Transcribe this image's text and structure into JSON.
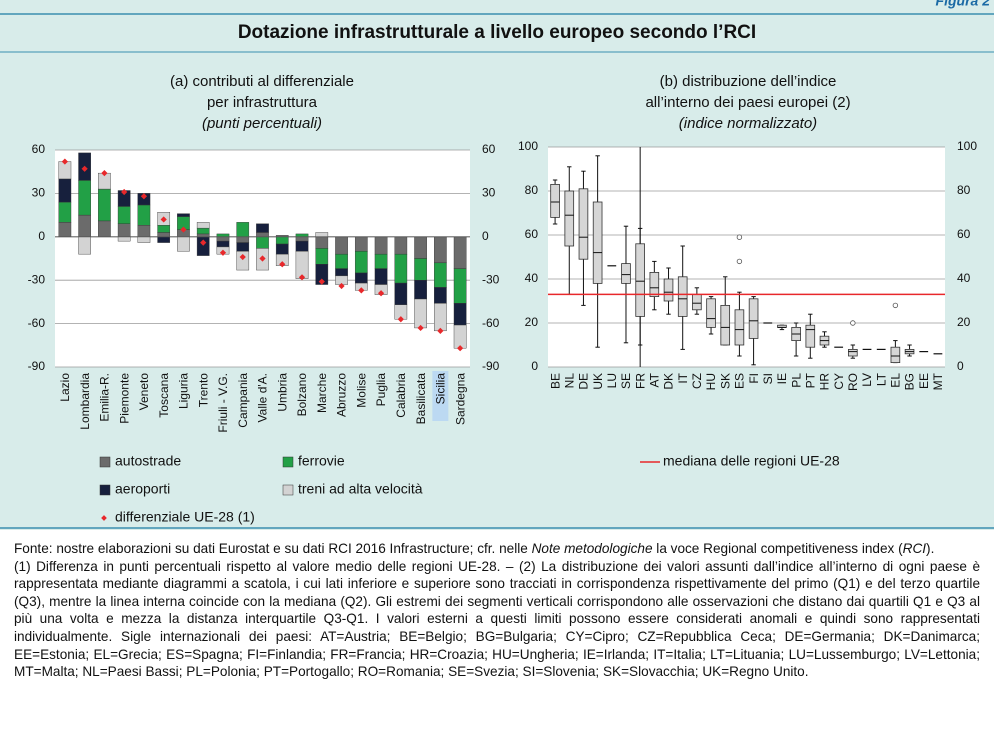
{
  "header": {
    "figure_label": "Figura 2",
    "title": "Dotazione infrastrutturale a livello europeo secondo l’RCI"
  },
  "chart_data": [
    {
      "type": "bar",
      "title_lines": [
        "(a) contributi al differenziale",
        "per infrastruttura"
      ],
      "subtitle": "(punti percentuali)",
      "categories": [
        "Lazio",
        "Lombardia",
        "Emilia-R.",
        "Piemonte",
        "Veneto",
        "Toscana",
        "Liguria",
        "Trento",
        "Friuli - V.G.",
        "Campania",
        "Valle d'A.",
        "Umbria",
        "Bolzano",
        "Marche",
        "Abruzzo",
        "Molise",
        "Puglia",
        "Calabria",
        "Basilicata",
        "Sicilia",
        "Sardegna"
      ],
      "highlight_index": 19,
      "stacked": true,
      "series": [
        {
          "name": "autostrade",
          "color": "#6b6b6b",
          "values": [
            10,
            15,
            11,
            9,
            8,
            3,
            5,
            2,
            -3,
            -4,
            3,
            1,
            -3,
            -8,
            -12,
            -10,
            -12,
            -12,
            -15,
            -18,
            -22
          ]
        },
        {
          "name": "ferrovie",
          "color": "#22a046",
          "values": [
            14,
            24,
            22,
            12,
            14,
            5,
            9,
            4,
            2,
            10,
            -8,
            -5,
            2,
            -11,
            -10,
            -15,
            -10,
            -20,
            -15,
            -17,
            -24
          ]
        },
        {
          "name": "aeroporti",
          "color": "#17203d",
          "values": [
            16,
            19,
            0,
            11,
            8,
            -4,
            2,
            -13,
            -4,
            -6,
            6,
            -7,
            -7,
            -14,
            -5,
            -7,
            -11,
            -15,
            -13,
            -11,
            -15
          ]
        },
        {
          "name": "treni ad alta velocità",
          "color": "#d3d3d3",
          "values": [
            12,
            -12,
            11,
            -3,
            -4,
            9,
            -10,
            4,
            -5,
            -13,
            -15,
            -8,
            -19,
            3,
            -6,
            -5,
            -7,
            -10,
            -20,
            -19,
            -16
          ]
        }
      ],
      "markers": {
        "name": "differenziale UE-28 (1)",
        "color": "#e8282b",
        "values": [
          52,
          47,
          44,
          31,
          28,
          12,
          5,
          -4,
          -11,
          -14,
          -15,
          -19,
          -28,
          -31,
          -34,
          -37,
          -39,
          -57,
          -63,
          -65,
          -77
        ]
      },
      "ylim": [
        -90,
        60
      ],
      "yticks": [
        60,
        30,
        0,
        -30,
        -60,
        -90
      ],
      "grid": true
    },
    {
      "type": "box",
      "title_lines": [
        "(b) distribuzione dell’indice",
        "all’interno dei paesi europei (2)"
      ],
      "subtitle": "(indice normalizzato)",
      "categories": [
        "BE",
        "NL",
        "DE",
        "UK",
        "LU",
        "SE",
        "FR",
        "AT",
        "DK",
        "IT",
        "CZ",
        "HU",
        "SK",
        "ES",
        "FI",
        "SI",
        "IE",
        "PL",
        "PT",
        "HR",
        "CY",
        "RO",
        "LV",
        "LT",
        "EL",
        "BG",
        "EE",
        "MT"
      ],
      "color": "#d6d6d6",
      "boxes": [
        {
          "stats": [
            65,
            68,
            75,
            83,
            85
          ],
          "outliers": []
        },
        {
          "stats": [
            33,
            55,
            69,
            80,
            91
          ],
          "outliers": []
        },
        {
          "stats": [
            28,
            49,
            59,
            81,
            89
          ],
          "outliers": []
        },
        {
          "stats": [
            9,
            38,
            52,
            75,
            96
          ],
          "outliers": []
        },
        {
          "stats": [
            46
          ],
          "outliers": []
        },
        {
          "stats": [
            11,
            38,
            42,
            47,
            64
          ],
          "outliers": []
        },
        {
          "stats": [
            10,
            23,
            39,
            56,
            63
          ],
          "outliers": []
        },
        {
          "stats": [
            26,
            32,
            36,
            43,
            48
          ],
          "outliers": []
        },
        {
          "stats": [
            24,
            30,
            34,
            40,
            45
          ],
          "outliers": []
        },
        {
          "stats": [
            8,
            23,
            31,
            41,
            55
          ],
          "outliers": []
        },
        {
          "stats": [
            24,
            26,
            29,
            33,
            36
          ],
          "outliers": []
        },
        {
          "stats": [
            15,
            18,
            22,
            31,
            32
          ],
          "outliers": []
        },
        {
          "stats": [
            10,
            10,
            18,
            28,
            41
          ],
          "outliers": []
        },
        {
          "stats": [
            5,
            10,
            17,
            26,
            34
          ],
          "outliers": [
            59,
            48
          ]
        },
        {
          "stats": [
            1,
            13,
            21,
            31,
            32
          ],
          "outliers": []
        },
        {
          "stats": [
            20
          ],
          "outliers": []
        },
        {
          "stats": [
            17,
            18,
            18,
            19,
            19
          ],
          "outliers": []
        },
        {
          "stats": [
            5,
            12,
            15,
            18,
            20
          ],
          "outliers": []
        },
        {
          "stats": [
            4,
            9,
            17,
            19,
            24
          ],
          "outliers": []
        },
        {
          "stats": [
            9,
            10,
            12,
            14,
            16
          ],
          "outliers": []
        },
        {
          "stats": [
            9
          ],
          "outliers": []
        },
        {
          "stats": [
            4,
            5,
            7,
            8,
            10
          ],
          "outliers": [
            20
          ]
        },
        {
          "stats": [
            8
          ],
          "outliers": []
        },
        {
          "stats": [
            8
          ],
          "outliers": []
        },
        {
          "stats": [
            2,
            2,
            5,
            9,
            12
          ],
          "outliers": [
            28
          ]
        },
        {
          "stats": [
            5,
            6,
            7,
            8,
            10
          ],
          "outliers": []
        },
        {
          "stats": [
            7
          ],
          "outliers": []
        },
        {
          "stats": [
            6
          ],
          "outliers": []
        }
      ],
      "reference_line": {
        "name": "mediana delle regioni UE-28",
        "value": 33,
        "color": "#e8282b"
      },
      "ylim": [
        0,
        100
      ],
      "yticks": [
        0,
        20,
        40,
        60,
        80,
        100
      ],
      "grid": true
    }
  ],
  "notes": {
    "source": [
      "Fonte: nostre elaborazioni su dati Eurostat e su dati RCI 2016 Infrastructure; cfr. nelle ",
      "Note metodologiche",
      " la voce Regional competitiveness index (",
      "RCI",
      ")."
    ],
    "text": "(1) Differenza in punti percentuali rispetto al valore medio delle regioni UE-28. – (2) La distribuzione dei valori assunti dall’indice all’interno di ogni paese è rappresentata mediante diagrammi a scatola, i cui lati inferiore e superiore sono tracciati in corrispondenza rispettivamente del primo (Q1) e del terzo quartile (Q3), mentre la linea interna coincide con la mediana (Q2). Gli estremi dei segmenti verticali corrispondono alle osservazioni che distano dai quartili Q1 e Q3 al più una volta e mezza la distanza interquartile Q3-Q1. I valori esterni a questi limiti possono essere considerati anomali e quindi sono rappresentati individualmente. Sigle internazionali dei paesi: AT=Austria; BE=Belgio; BG=Bulgaria; CY=Cipro; CZ=Repubblica Ceca; DE=Germania; DK=Danimarca; EE=Estonia; EL=Grecia; ES=Spagna; FI=Finlandia; FR=Francia; HR=Croazia; HU=Ungheria; IE=Irlanda; IT=Italia; LT=Lituania; LU=Lussemburgo; LV=Lettonia; MT=Malta; NL=Paesi Bassi; PL=Polonia; PT=Portogallo; RO=Romania; SE=Svezia; SI=Slovenia; SK=Slovacchia; UK=Regno Unito."
  }
}
